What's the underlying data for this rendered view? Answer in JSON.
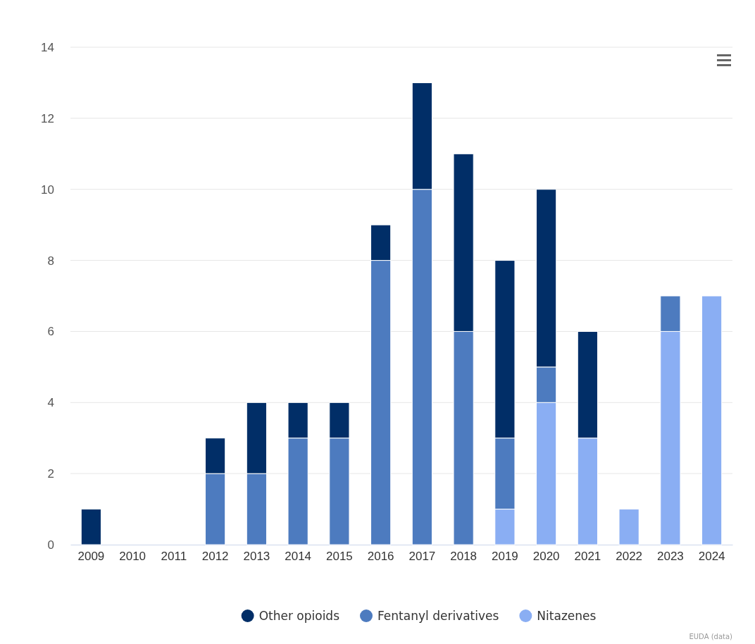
{
  "chart_data": {
    "type": "bar",
    "stacked": true,
    "categories": [
      "2009",
      "2010",
      "2011",
      "2012",
      "2013",
      "2014",
      "2015",
      "2016",
      "2017",
      "2018",
      "2019",
      "2020",
      "2021",
      "2022",
      "2023",
      "2024"
    ],
    "series": [
      {
        "name": "Nitazenes",
        "color": "#8aaef3",
        "values": [
          0,
          0,
          0,
          0,
          0,
          0,
          0,
          0,
          0,
          0,
          1,
          4,
          3,
          1,
          6,
          7
        ]
      },
      {
        "name": "Fentanyl derivatives",
        "color": "#4d7bbf",
        "values": [
          0,
          0,
          0,
          2,
          2,
          3,
          3,
          8,
          10,
          6,
          2,
          1,
          0,
          0,
          1,
          0
        ]
      },
      {
        "name": "Other opioids",
        "color": "#012e67",
        "values": [
          1,
          0,
          0,
          1,
          2,
          1,
          1,
          1,
          3,
          5,
          5,
          5,
          3,
          0,
          0,
          0
        ]
      }
    ],
    "ylim": [
      0,
      14
    ],
    "yticks": [
      0,
      2,
      4,
      6,
      8,
      10,
      12,
      14
    ],
    "grid": "y",
    "legend": "bottom",
    "annotations": [
      "EUDA (data)"
    ]
  }
}
